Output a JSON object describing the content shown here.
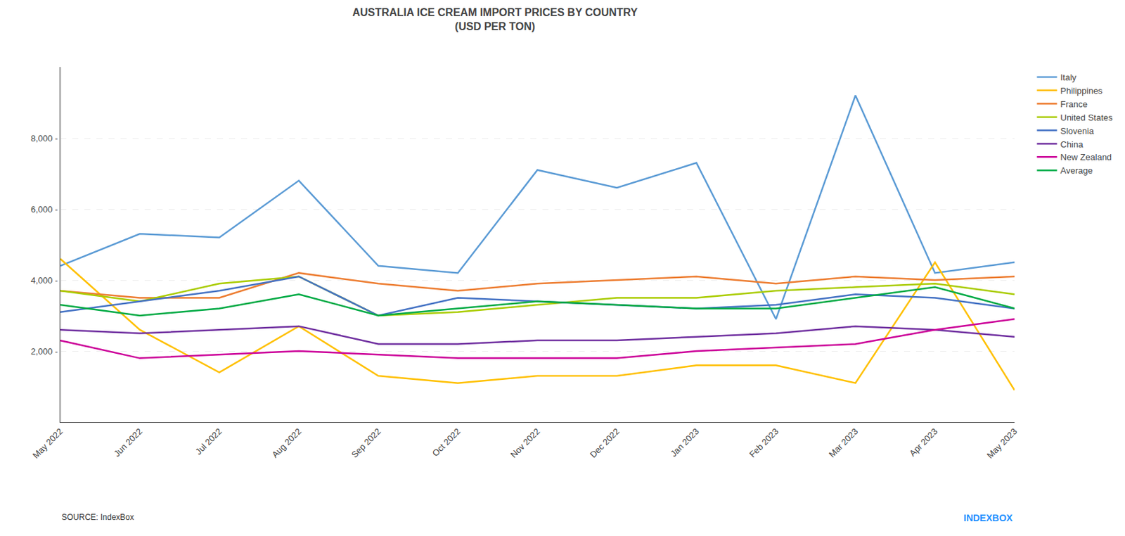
{
  "chart_data": {
    "type": "line",
    "title": "AUSTRALIA ICE CREAM IMPORT PRICES BY COUNTRY\n(USD PER TON)",
    "categories": [
      "May 2022",
      "Jun 2022",
      "Jul 2022",
      "Aug 2022",
      "Sep 2022",
      "Oct 2022",
      "Nov 2022",
      "Dec 2022",
      "Jan 2023",
      "Feb 2023",
      "Mar 2023",
      "Apr 2023",
      "May 2023"
    ],
    "series": [
      {
        "name": "Italy",
        "color": "#5B9BD5",
        "values": [
          4400,
          5300,
          5200,
          6800,
          4400,
          4200,
          7100,
          6600,
          7300,
          2900,
          9200,
          4200,
          4500
        ]
      },
      {
        "name": "Philippines",
        "color": "#FFC000",
        "values": [
          4600,
          2600,
          1400,
          2700,
          1300,
          1100,
          1300,
          1300,
          1600,
          1600,
          1100,
          4500,
          900
        ]
      },
      {
        "name": "France",
        "color": "#ED7D31",
        "values": [
          3700,
          3500,
          3500,
          4200,
          3900,
          3700,
          3900,
          4000,
          4100,
          3900,
          4100,
          4000,
          4100
        ]
      },
      {
        "name": "United States",
        "color": "#AACC00",
        "values": [
          3700,
          3400,
          3900,
          4100,
          3000,
          3100,
          3300,
          3500,
          3500,
          3700,
          3800,
          3900,
          3600
        ]
      },
      {
        "name": "Slovenia",
        "color": "#4472C4",
        "values": [
          3100,
          3400,
          3700,
          4100,
          3000,
          3500,
          3400,
          3300,
          3200,
          3300,
          3600,
          3500,
          3200
        ]
      },
      {
        "name": "China",
        "color": "#7030A0",
        "values": [
          2600,
          2500,
          2600,
          2700,
          2200,
          2200,
          2300,
          2300,
          2400,
          2500,
          2700,
          2600,
          2400
        ]
      },
      {
        "name": "New Zealand",
        "color": "#CC0099",
        "values": [
          2300,
          1800,
          1900,
          2000,
          1900,
          1800,
          1800,
          1800,
          2000,
          2100,
          2200,
          2600,
          2900
        ]
      },
      {
        "name": "Average",
        "color": "#00AA44",
        "values": [
          3300,
          3000,
          3200,
          3600,
          3000,
          3200,
          3400,
          3300,
          3200,
          3200,
          3500,
          3800,
          3200
        ]
      }
    ],
    "ylim": [
      0,
      10000
    ],
    "yticks": [
      {
        "value": 2000,
        "label": "2,000 -"
      },
      {
        "value": 4000,
        "label": "4,000 -"
      },
      {
        "value": 6000,
        "label": "6,000 -"
      },
      {
        "value": 8000,
        "label": "8,000 -"
      }
    ],
    "grid": true,
    "legend": "right",
    "annotations": [
      "SOURCE: IndexBox",
      "INDEXBOX"
    ]
  }
}
